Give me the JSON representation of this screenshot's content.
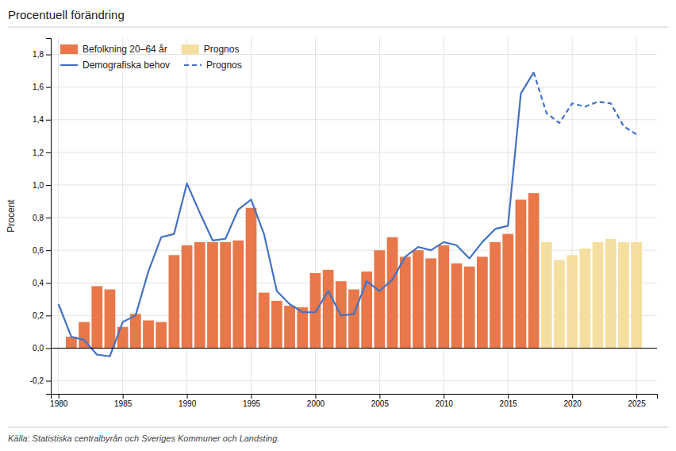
{
  "chart_data": {
    "type": "bar",
    "title": "Procentuell förändring",
    "y_label": "Procent",
    "source": "Källa: Statistiska centralbyrån och Sveriges Kommuner och Landsting.",
    "xlim": [
      1979.4,
      2026.6
    ],
    "xticks": [
      1980,
      1985,
      1990,
      1995,
      2000,
      2005,
      2010,
      2015,
      2020,
      2025
    ],
    "ylim": [
      -0.28,
      1.9
    ],
    "yticks": [
      {
        "value": -0.2,
        "label": "-0,2"
      },
      {
        "value": 0.0,
        "label": "0,0"
      },
      {
        "value": 0.2,
        "label": "0,2"
      },
      {
        "value": 0.4,
        "label": "0,4"
      },
      {
        "value": 0.6,
        "label": "0,6"
      },
      {
        "value": 0.8,
        "label": "0,8"
      },
      {
        "value": 1.0,
        "label": "1,0"
      },
      {
        "value": 1.2,
        "label": "1,2"
      },
      {
        "value": 1.4,
        "label": "1,4"
      },
      {
        "value": 1.6,
        "label": "1,6"
      },
      {
        "value": 1.8,
        "label": "1,8"
      }
    ],
    "grid": true,
    "legend": "upper left",
    "series": [
      {
        "name": "Befolkning 20–64 år",
        "type": "bar",
        "color": "#E8774A",
        "x": [
          1981,
          1982,
          1983,
          1984,
          1985,
          1986,
          1987,
          1988,
          1989,
          1990,
          1991,
          1992,
          1993,
          1994,
          1995,
          1996,
          1997,
          1998,
          1999,
          2000,
          2001,
          2002,
          2003,
          2004,
          2005,
          2006,
          2007,
          2008,
          2009,
          2010,
          2011,
          2012,
          2013,
          2014,
          2015,
          2016,
          2017
        ],
        "values": [
          0.07,
          0.16,
          0.38,
          0.36,
          0.13,
          0.21,
          0.17,
          0.16,
          0.57,
          0.63,
          0.65,
          0.65,
          0.65,
          0.66,
          0.86,
          0.34,
          0.29,
          0.26,
          0.25,
          0.46,
          0.48,
          0.41,
          0.36,
          0.47,
          0.6,
          0.68,
          0.56,
          0.6,
          0.55,
          0.63,
          0.52,
          0.5,
          0.56,
          0.65,
          0.7,
          0.91,
          0.95
        ]
      },
      {
        "name": "Prognos",
        "type": "bar",
        "color": "#F5DFA0",
        "x": [
          2018,
          2019,
          2020,
          2021,
          2022,
          2023,
          2024,
          2025
        ],
        "values": [
          0.65,
          0.54,
          0.57,
          0.61,
          0.65,
          0.67,
          0.65,
          0.65
        ]
      },
      {
        "name": "Demografiska behov",
        "type": "line",
        "color": "#4472C4",
        "line_style": "solid",
        "x": [
          1980,
          1981,
          1982,
          1983,
          1984,
          1985,
          1986,
          1987,
          1988,
          1989,
          1990,
          1991,
          1992,
          1993,
          1994,
          1995,
          1996,
          1997,
          1998,
          1999,
          2000,
          2001,
          2002,
          2003,
          2004,
          2005,
          2006,
          2007,
          2008,
          2009,
          2010,
          2011,
          2012,
          2013,
          2014,
          2015,
          2016,
          2017
        ],
        "values": [
          0.27,
          0.07,
          0.05,
          -0.04,
          -0.05,
          0.16,
          0.2,
          0.47,
          0.68,
          0.7,
          1.01,
          0.83,
          0.66,
          0.67,
          0.85,
          0.91,
          0.7,
          0.35,
          0.27,
          0.22,
          0.22,
          0.35,
          0.2,
          0.21,
          0.41,
          0.35,
          0.42,
          0.56,
          0.62,
          0.6,
          0.65,
          0.63,
          0.55,
          0.65,
          0.73,
          0.75,
          1.56,
          1.69
        ]
      },
      {
        "name": "Prognos",
        "type": "line",
        "color": "#4472C4",
        "line_style": "dashed",
        "x": [
          2017,
          2018,
          2019,
          2020,
          2021,
          2022,
          2023,
          2024,
          2025
        ],
        "values": [
          1.69,
          1.44,
          1.38,
          1.5,
          1.48,
          1.51,
          1.5,
          1.36,
          1.31
        ]
      }
    ]
  }
}
